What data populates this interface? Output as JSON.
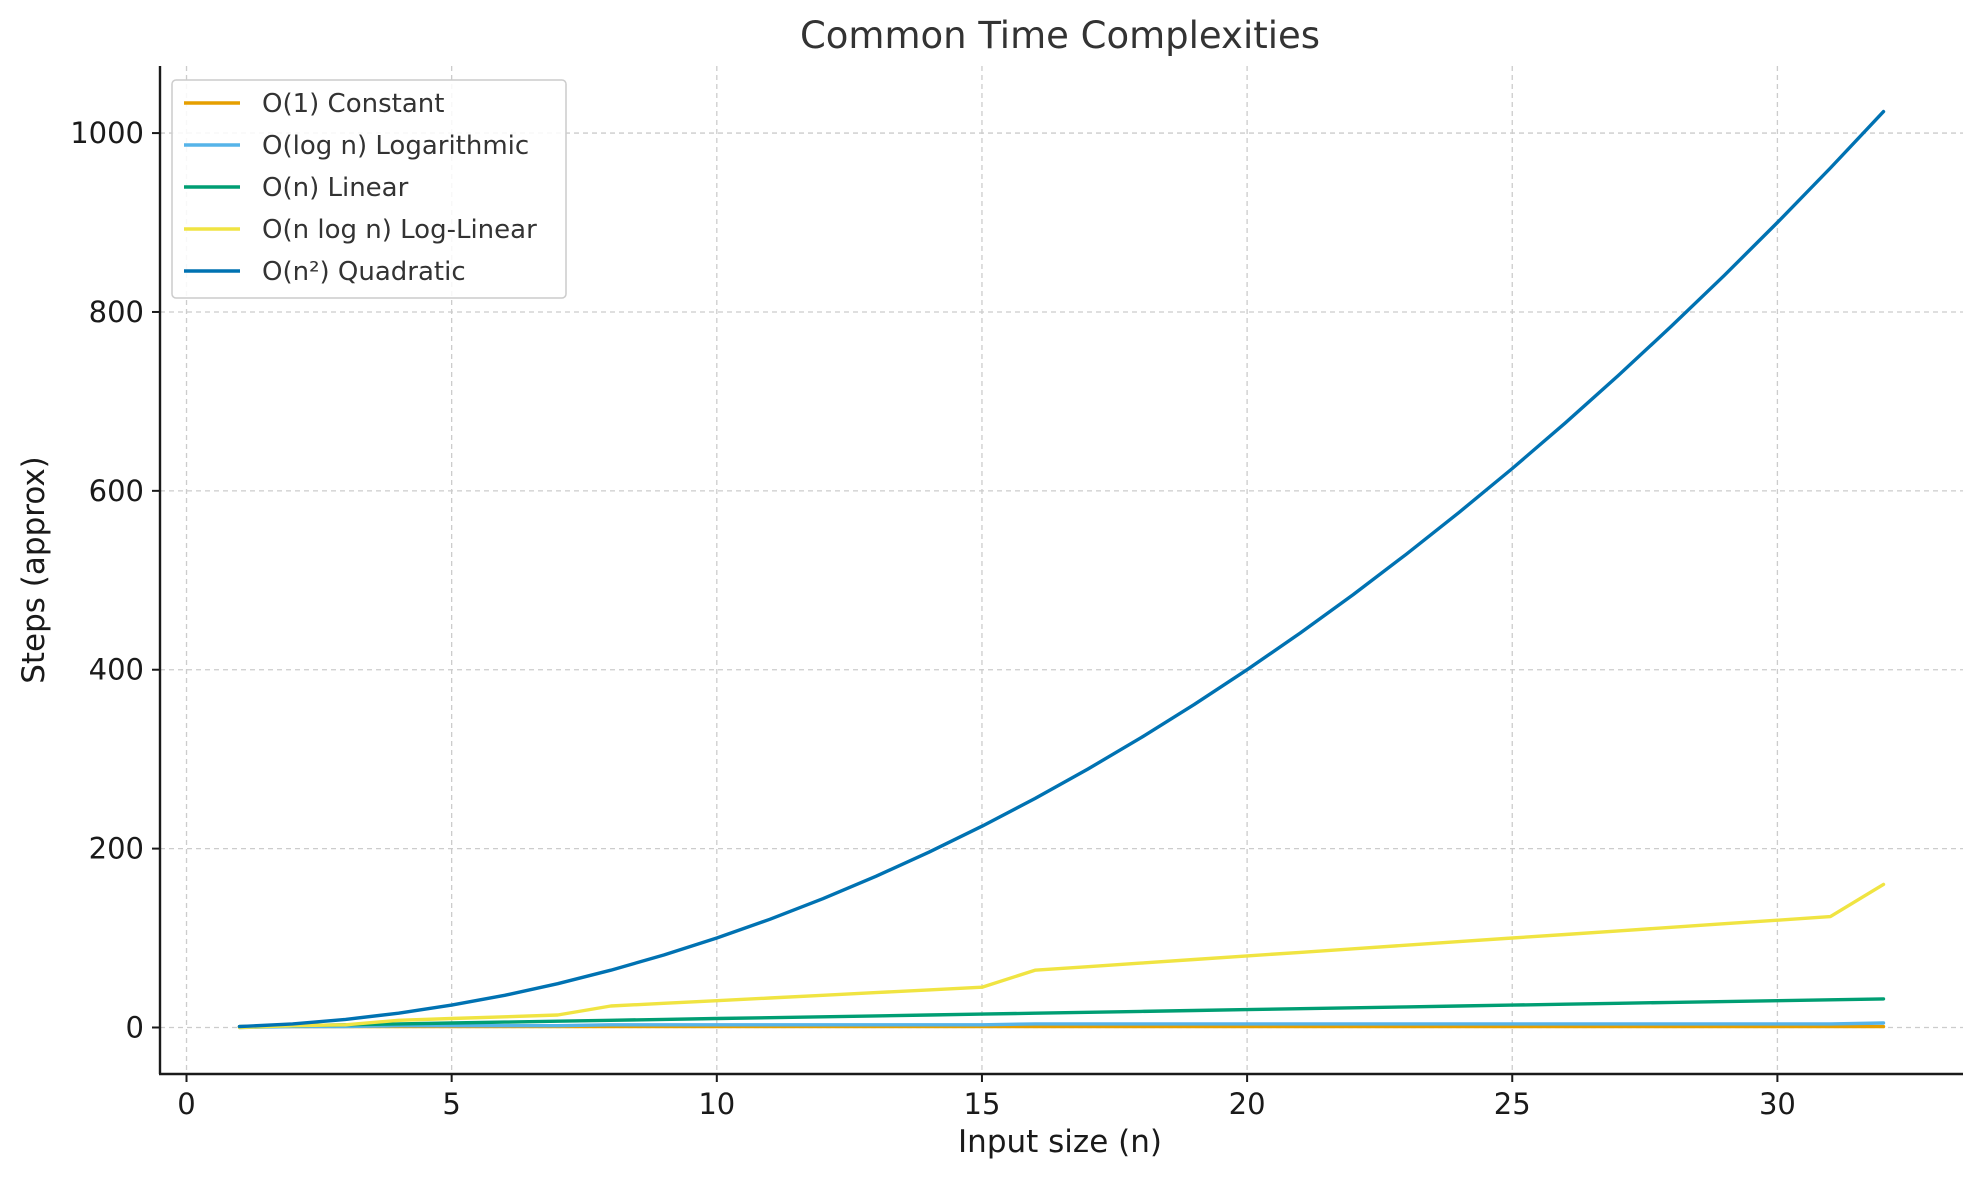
{
  "chart_data": {
    "type": "line",
    "title": "Common Time Complexities",
    "xlabel": "Input size (n)",
    "ylabel": "Steps (approx)",
    "xlim": [
      -0.5,
      33.5
    ],
    "ylim": [
      -52,
      1075
    ],
    "xticks": [
      0,
      5,
      10,
      15,
      20,
      25,
      30
    ],
    "yticks": [
      0,
      200,
      400,
      600,
      800,
      1000
    ],
    "grid": true,
    "legend_position": "top-left",
    "x": [
      1,
      2,
      3,
      4,
      5,
      6,
      7,
      8,
      9,
      10,
      11,
      12,
      13,
      14,
      15,
      16,
      17,
      18,
      19,
      20,
      21,
      22,
      23,
      24,
      25,
      26,
      27,
      28,
      29,
      30,
      31,
      32
    ],
    "series": [
      {
        "name": "O(1) Constant",
        "color": "#e69f00",
        "values": [
          1,
          1,
          1,
          1,
          1,
          1,
          1,
          1,
          1,
          1,
          1,
          1,
          1,
          1,
          1,
          1,
          1,
          1,
          1,
          1,
          1,
          1,
          1,
          1,
          1,
          1,
          1,
          1,
          1,
          1,
          1,
          1
        ]
      },
      {
        "name": "O(log n) Logarithmic",
        "color": "#56b4e9",
        "values": [
          0,
          1,
          1,
          2,
          2,
          2,
          2,
          3,
          3,
          3,
          3,
          3,
          3,
          3,
          3,
          4,
          4,
          4,
          4,
          4,
          4,
          4,
          4,
          4,
          4,
          4,
          4,
          4,
          4,
          4,
          4,
          5
        ]
      },
      {
        "name": "O(n) Linear",
        "color": "#009e73",
        "values": [
          1,
          2,
          3,
          4,
          5,
          6,
          7,
          8,
          9,
          10,
          11,
          12,
          13,
          14,
          15,
          16,
          17,
          18,
          19,
          20,
          21,
          22,
          23,
          24,
          25,
          26,
          27,
          28,
          29,
          30,
          31,
          32
        ]
      },
      {
        "name": "O(n log n) Log-Linear",
        "color": "#f0e442",
        "values": [
          0,
          2,
          3,
          8,
          10,
          12,
          14,
          24,
          27,
          30,
          33,
          36,
          39,
          42,
          45,
          64,
          68,
          72,
          76,
          80,
          84,
          88,
          92,
          96,
          100,
          104,
          108,
          112,
          116,
          120,
          124,
          160
        ]
      },
      {
        "name": "O(n²) Quadratic",
        "color": "#0072b2",
        "values": [
          1,
          4,
          9,
          16,
          25,
          36,
          49,
          64,
          81,
          100,
          121,
          144,
          169,
          196,
          225,
          256,
          289,
          324,
          361,
          400,
          441,
          484,
          529,
          576,
          625,
          676,
          729,
          784,
          841,
          900,
          961,
          1024
        ]
      }
    ]
  }
}
